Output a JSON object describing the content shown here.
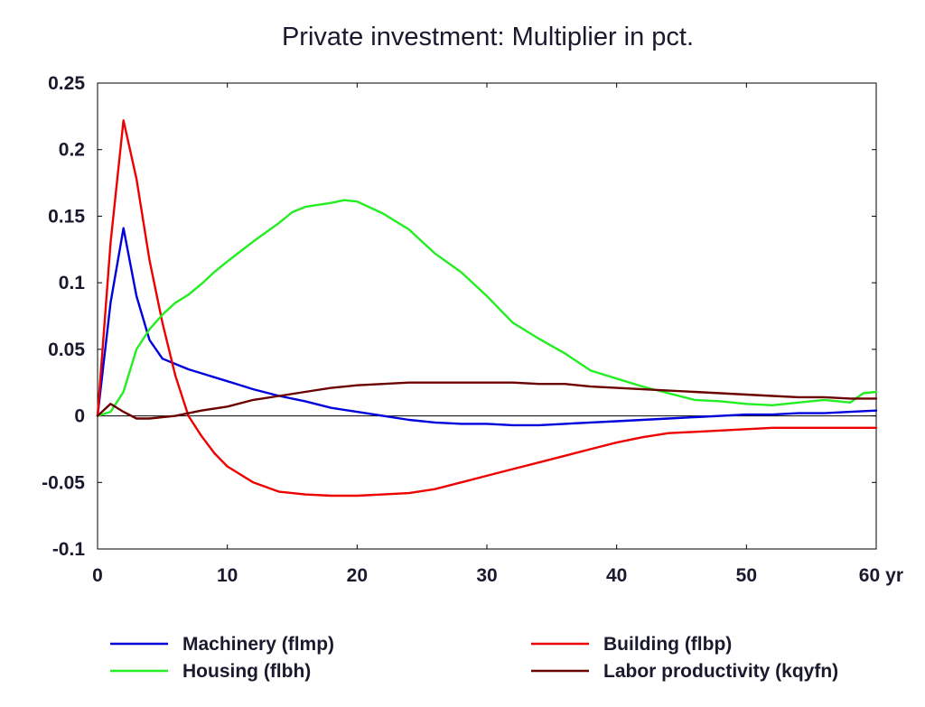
{
  "chart_data": {
    "type": "line",
    "title": "Private investment: Multiplier in pct.",
    "xlabel": "",
    "ylabel": "",
    "x_unit_label": "yr",
    "xlim": [
      0,
      60
    ],
    "ylim": [
      -0.1,
      0.25
    ],
    "x_ticks": [
      {
        "value": 0,
        "label": "0"
      },
      {
        "value": 10,
        "label": "10"
      },
      {
        "value": 20,
        "label": "20"
      },
      {
        "value": 30,
        "label": "30"
      },
      {
        "value": 40,
        "label": "40"
      },
      {
        "value": 50,
        "label": "50"
      },
      {
        "value": 60,
        "label": "60"
      }
    ],
    "y_ticks": [
      {
        "value": 0.25,
        "label": "0.25"
      },
      {
        "value": 0.2,
        "label": "0.2"
      },
      {
        "value": 0.15,
        "label": "0.15"
      },
      {
        "value": 0.1,
        "label": "0.1"
      },
      {
        "value": 0.05,
        "label": "0.05"
      },
      {
        "value": 0,
        "label": "0"
      },
      {
        "value": -0.05,
        "label": "-0.05"
      },
      {
        "value": -0.1,
        "label": "-0.1"
      }
    ],
    "grid": false,
    "zero_line": true,
    "legend_position": "bottom",
    "series": [
      {
        "name": "Machinery (flmp)",
        "color": "#0000dd",
        "points": [
          [
            0,
            0
          ],
          [
            1,
            0.085
          ],
          [
            2,
            0.141
          ],
          [
            3,
            0.09
          ],
          [
            4,
            0.057
          ],
          [
            5,
            0.043
          ],
          [
            6,
            0.039
          ],
          [
            7,
            0.035
          ],
          [
            8,
            0.032
          ],
          [
            9,
            0.029
          ],
          [
            10,
            0.026
          ],
          [
            12,
            0.02
          ],
          [
            14,
            0.015
          ],
          [
            16,
            0.011
          ],
          [
            18,
            0.006
          ],
          [
            20,
            0.003
          ],
          [
            22,
            0.0
          ],
          [
            24,
            -0.003
          ],
          [
            26,
            -0.005
          ],
          [
            28,
            -0.006
          ],
          [
            30,
            -0.006
          ],
          [
            32,
            -0.007
          ],
          [
            34,
            -0.007
          ],
          [
            36,
            -0.006
          ],
          [
            38,
            -0.005
          ],
          [
            40,
            -0.004
          ],
          [
            42,
            -0.003
          ],
          [
            44,
            -0.002
          ],
          [
            46,
            -0.001
          ],
          [
            48,
            0.0
          ],
          [
            50,
            0.001
          ],
          [
            52,
            0.001
          ],
          [
            54,
            0.002
          ],
          [
            56,
            0.002
          ],
          [
            58,
            0.003
          ],
          [
            60,
            0.004
          ]
        ]
      },
      {
        "name": "Building (flbp)",
        "color": "#ee0000",
        "points": [
          [
            0,
            0
          ],
          [
            1,
            0.13
          ],
          [
            2,
            0.222
          ],
          [
            3,
            0.178
          ],
          [
            4,
            0.117
          ],
          [
            5,
            0.07
          ],
          [
            6,
            0.03
          ],
          [
            7,
            0.0
          ],
          [
            8,
            -0.015
          ],
          [
            9,
            -0.028
          ],
          [
            10,
            -0.038
          ],
          [
            12,
            -0.05
          ],
          [
            14,
            -0.057
          ],
          [
            16,
            -0.059
          ],
          [
            18,
            -0.06
          ],
          [
            20,
            -0.06
          ],
          [
            22,
            -0.059
          ],
          [
            24,
            -0.058
          ],
          [
            26,
            -0.055
          ],
          [
            28,
            -0.05
          ],
          [
            30,
            -0.045
          ],
          [
            32,
            -0.04
          ],
          [
            34,
            -0.035
          ],
          [
            36,
            -0.03
          ],
          [
            38,
            -0.025
          ],
          [
            40,
            -0.02
          ],
          [
            42,
            -0.016
          ],
          [
            44,
            -0.013
          ],
          [
            46,
            -0.012
          ],
          [
            48,
            -0.011
          ],
          [
            50,
            -0.01
          ],
          [
            52,
            -0.009
          ],
          [
            54,
            -0.009
          ],
          [
            56,
            -0.009
          ],
          [
            58,
            -0.009
          ],
          [
            60,
            -0.009
          ]
        ]
      },
      {
        "name": "Housing (flbh)",
        "color": "#22ee22",
        "points": [
          [
            0,
            0
          ],
          [
            1,
            0.003
          ],
          [
            2,
            0.018
          ],
          [
            3,
            0.05
          ],
          [
            4,
            0.065
          ],
          [
            5,
            0.076
          ],
          [
            6,
            0.085
          ],
          [
            7,
            0.091
          ],
          [
            8,
            0.099
          ],
          [
            9,
            0.108
          ],
          [
            10,
            0.116
          ],
          [
            12,
            0.131
          ],
          [
            14,
            0.145
          ],
          [
            15,
            0.153
          ],
          [
            16,
            0.157
          ],
          [
            18,
            0.16
          ],
          [
            19,
            0.162
          ],
          [
            20,
            0.161
          ],
          [
            22,
            0.152
          ],
          [
            24,
            0.14
          ],
          [
            26,
            0.122
          ],
          [
            28,
            0.108
          ],
          [
            30,
            0.09
          ],
          [
            32,
            0.07
          ],
          [
            34,
            0.058
          ],
          [
            36,
            0.047
          ],
          [
            38,
            0.034
          ],
          [
            40,
            0.028
          ],
          [
            42,
            0.022
          ],
          [
            44,
            0.017
          ],
          [
            46,
            0.012
          ],
          [
            48,
            0.011
          ],
          [
            50,
            0.009
          ],
          [
            52,
            0.008
          ],
          [
            54,
            0.01
          ],
          [
            56,
            0.012
          ],
          [
            58,
            0.01
          ],
          [
            59,
            0.017
          ],
          [
            60,
            0.018
          ]
        ]
      },
      {
        "name": "Labor productivity (kqyfn)",
        "color": "#6b0000",
        "points": [
          [
            0,
            0
          ],
          [
            1,
            0.009
          ],
          [
            2,
            0.003
          ],
          [
            3,
            -0.002
          ],
          [
            4,
            -0.002
          ],
          [
            6,
            0.0
          ],
          [
            8,
            0.004
          ],
          [
            10,
            0.007
          ],
          [
            12,
            0.012
          ],
          [
            14,
            0.015
          ],
          [
            16,
            0.018
          ],
          [
            18,
            0.021
          ],
          [
            20,
            0.023
          ],
          [
            22,
            0.024
          ],
          [
            24,
            0.025
          ],
          [
            26,
            0.025
          ],
          [
            28,
            0.025
          ],
          [
            30,
            0.025
          ],
          [
            32,
            0.025
          ],
          [
            34,
            0.024
          ],
          [
            36,
            0.024
          ],
          [
            38,
            0.022
          ],
          [
            40,
            0.021
          ],
          [
            42,
            0.02
          ],
          [
            44,
            0.019
          ],
          [
            46,
            0.018
          ],
          [
            48,
            0.017
          ],
          [
            50,
            0.016
          ],
          [
            52,
            0.015
          ],
          [
            54,
            0.014
          ],
          [
            56,
            0.014
          ],
          [
            58,
            0.013
          ],
          [
            60,
            0.013
          ]
        ]
      }
    ]
  }
}
